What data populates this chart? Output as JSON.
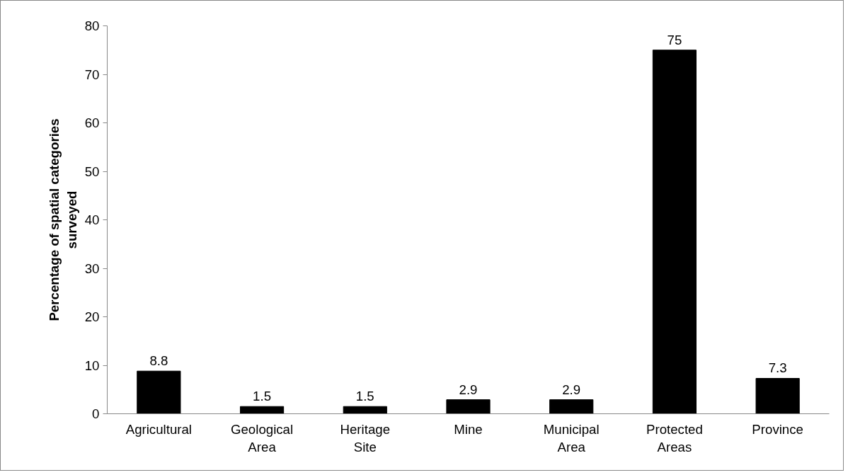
{
  "chart_data": {
    "type": "bar",
    "ylabel": "Percentage of spatial categories surveyed",
    "categories": [
      "Agricultural",
      "Geological Area",
      "Heritage Site",
      "Mine",
      "Municipal Area",
      "Protected Areas",
      "Province"
    ],
    "values": [
      8.8,
      1.5,
      1.5,
      2.9,
      2.9,
      75,
      7.3
    ],
    "color": "#000000",
    "ylim": [
      0,
      80
    ],
    "yticks": [
      0,
      10,
      20,
      30,
      40,
      50,
      60,
      70,
      80
    ],
    "grid": false,
    "data_labels": true
  }
}
